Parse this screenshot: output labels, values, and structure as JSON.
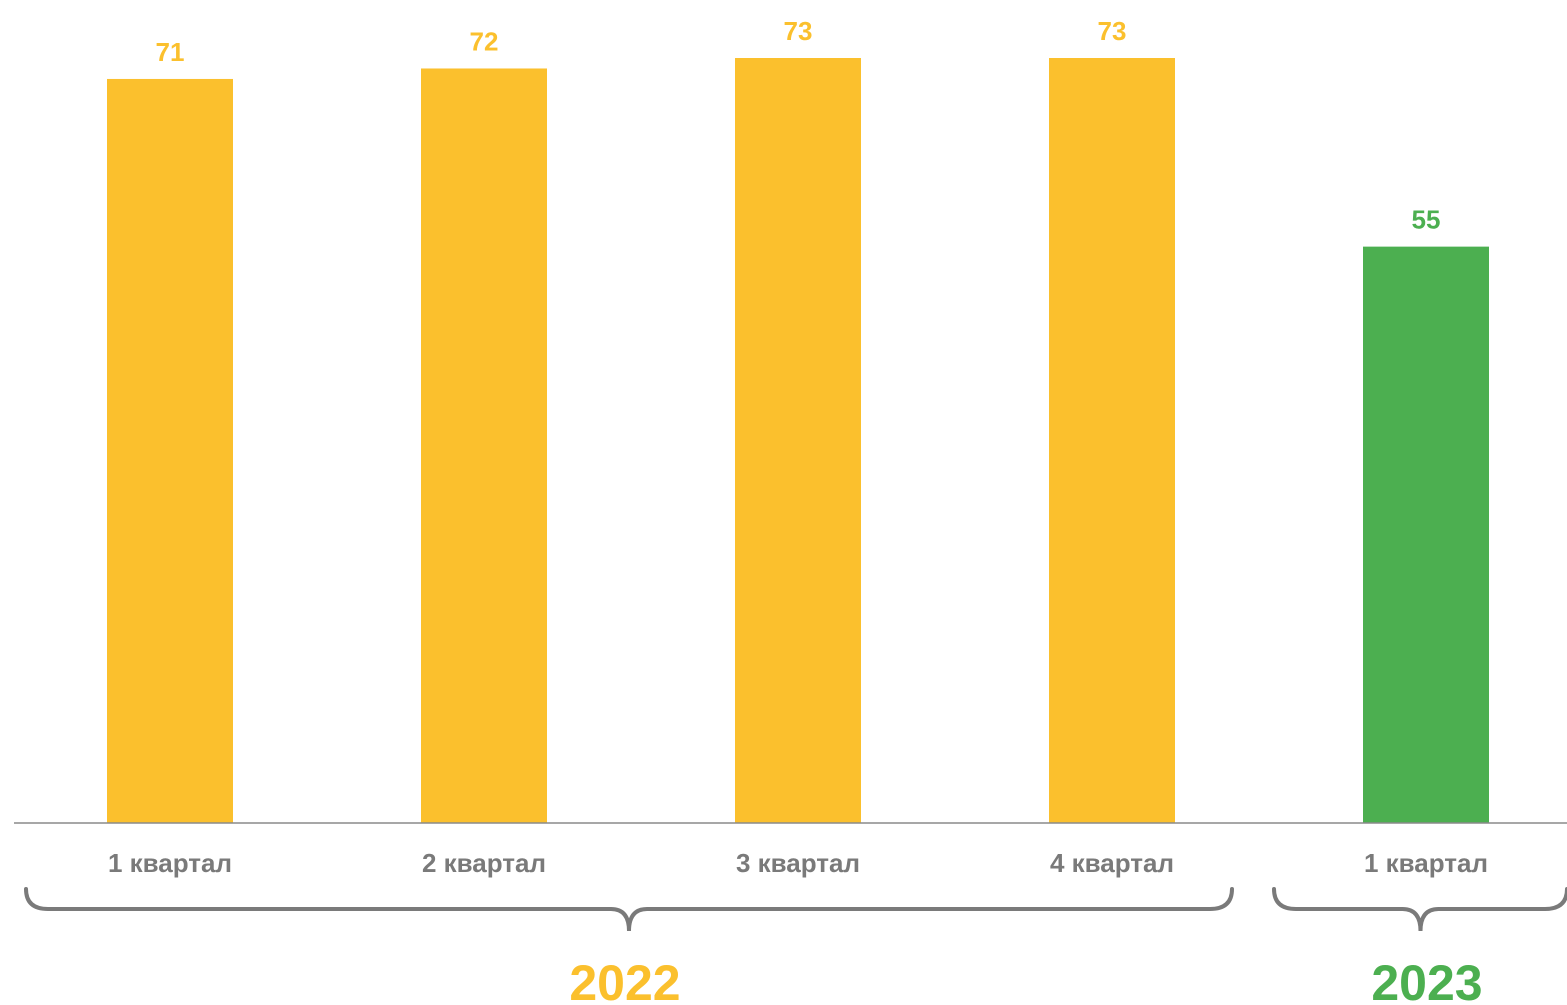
{
  "chart_data": {
    "type": "bar",
    "categories": [
      "1 квартал",
      "2 квартал",
      "3 квартал",
      "4 квартал",
      "1 квартал"
    ],
    "values": [
      71,
      72,
      73,
      73,
      55
    ],
    "groups": [
      {
        "label": "2022",
        "color": "#fbc02d",
        "count": 4
      },
      {
        "label": "2023",
        "color": "#4caf50",
        "count": 1
      }
    ],
    "ylim": [
      0,
      73
    ],
    "grid": false,
    "colors": {
      "2022": "#fbc02d",
      "2023": "#4caf50",
      "tick": "#7a7a7a",
      "axis": "#8a8a8a",
      "brace": "#7a7a7a"
    }
  }
}
